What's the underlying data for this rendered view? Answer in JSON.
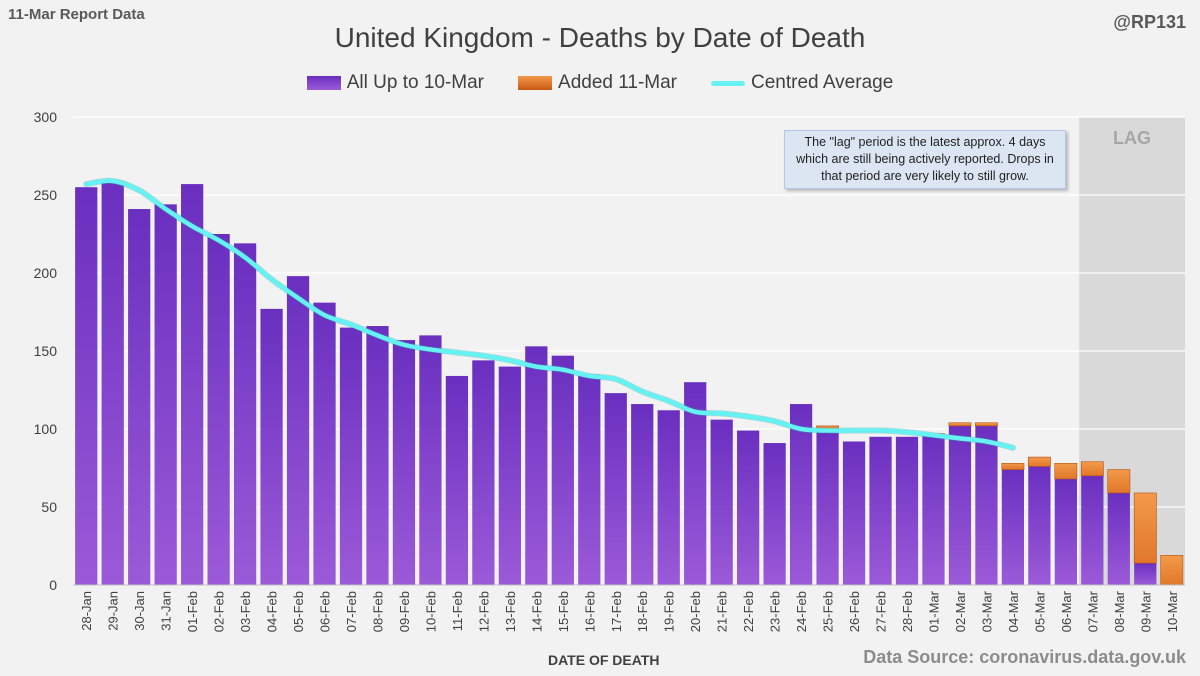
{
  "header": {
    "report_tag": "11-Mar Report Data",
    "handle": "@RP131",
    "source": "Data Source: coronavirus.data.gov.uk"
  },
  "colors": {
    "base_top": "#6a2fc0",
    "base_bottom": "#9b5ad8",
    "added": "#e2772a",
    "average": "#66f2f2",
    "lag_shade": "#d9d9d9",
    "grid": "#ffffff"
  },
  "chart_data": {
    "type": "bar",
    "title": "United Kingdom - Deaths by Date of Death",
    "xlabel": "DATE OF DEATH",
    "ylabel": "",
    "ylim": [
      0,
      300
    ],
    "yticks": [
      0,
      50,
      100,
      150,
      200,
      250,
      300
    ],
    "legend_position": "top-center",
    "categories": [
      "28-Jan",
      "29-Jan",
      "30-Jan",
      "31-Jan",
      "01-Feb",
      "02-Feb",
      "03-Feb",
      "04-Feb",
      "05-Feb",
      "06-Feb",
      "07-Feb",
      "08-Feb",
      "09-Feb",
      "10-Feb",
      "11-Feb",
      "12-Feb",
      "13-Feb",
      "14-Feb",
      "15-Feb",
      "16-Feb",
      "17-Feb",
      "18-Feb",
      "19-Feb",
      "20-Feb",
      "21-Feb",
      "22-Feb",
      "23-Feb",
      "24-Feb",
      "25-Feb",
      "26-Feb",
      "27-Feb",
      "28-Feb",
      "01-Mar",
      "02-Mar",
      "03-Mar",
      "04-Mar",
      "05-Mar",
      "06-Mar",
      "07-Mar",
      "08-Mar",
      "09-Mar",
      "10-Mar"
    ],
    "series": [
      {
        "name": "All Up to 10-Mar",
        "type": "bar",
        "values": [
          255,
          259,
          241,
          244,
          257,
          225,
          219,
          177,
          198,
          181,
          165,
          166,
          157,
          160,
          134,
          144,
          140,
          153,
          147,
          135,
          123,
          116,
          112,
          130,
          106,
          99,
          91,
          116,
          100,
          92,
          95,
          95,
          96,
          102,
          102,
          74,
          76,
          68,
          70,
          59,
          14,
          0
        ]
      },
      {
        "name": "Added 11-Mar",
        "type": "bar",
        "values": [
          0,
          0,
          0,
          0,
          0,
          0,
          0,
          0,
          0,
          0,
          0,
          0,
          0,
          0,
          0,
          0,
          0,
          0,
          0,
          0,
          0,
          0,
          0,
          0,
          0,
          0,
          0,
          0,
          2,
          0,
          0,
          0,
          1,
          2,
          2,
          4,
          6,
          10,
          9,
          15,
          45,
          19
        ]
      },
      {
        "name": "Centred Average",
        "type": "line",
        "values": [
          257,
          259,
          253,
          241,
          230,
          221,
          210,
          196,
          184,
          173,
          167,
          160,
          154,
          151,
          149,
          147,
          144,
          140,
          138,
          134,
          132,
          124,
          118,
          111,
          110,
          108,
          105,
          100,
          99,
          99,
          99,
          98,
          96,
          94,
          92,
          88,
          null,
          null,
          null,
          null,
          null,
          null
        ]
      }
    ],
    "lag": {
      "label": "LAG",
      "start": "07-Mar",
      "end": "10-Mar"
    },
    "annotation": "The \"lag\" period is the latest approx. 4 days which are still being actively reported. Drops in that period are very likely to still grow."
  }
}
